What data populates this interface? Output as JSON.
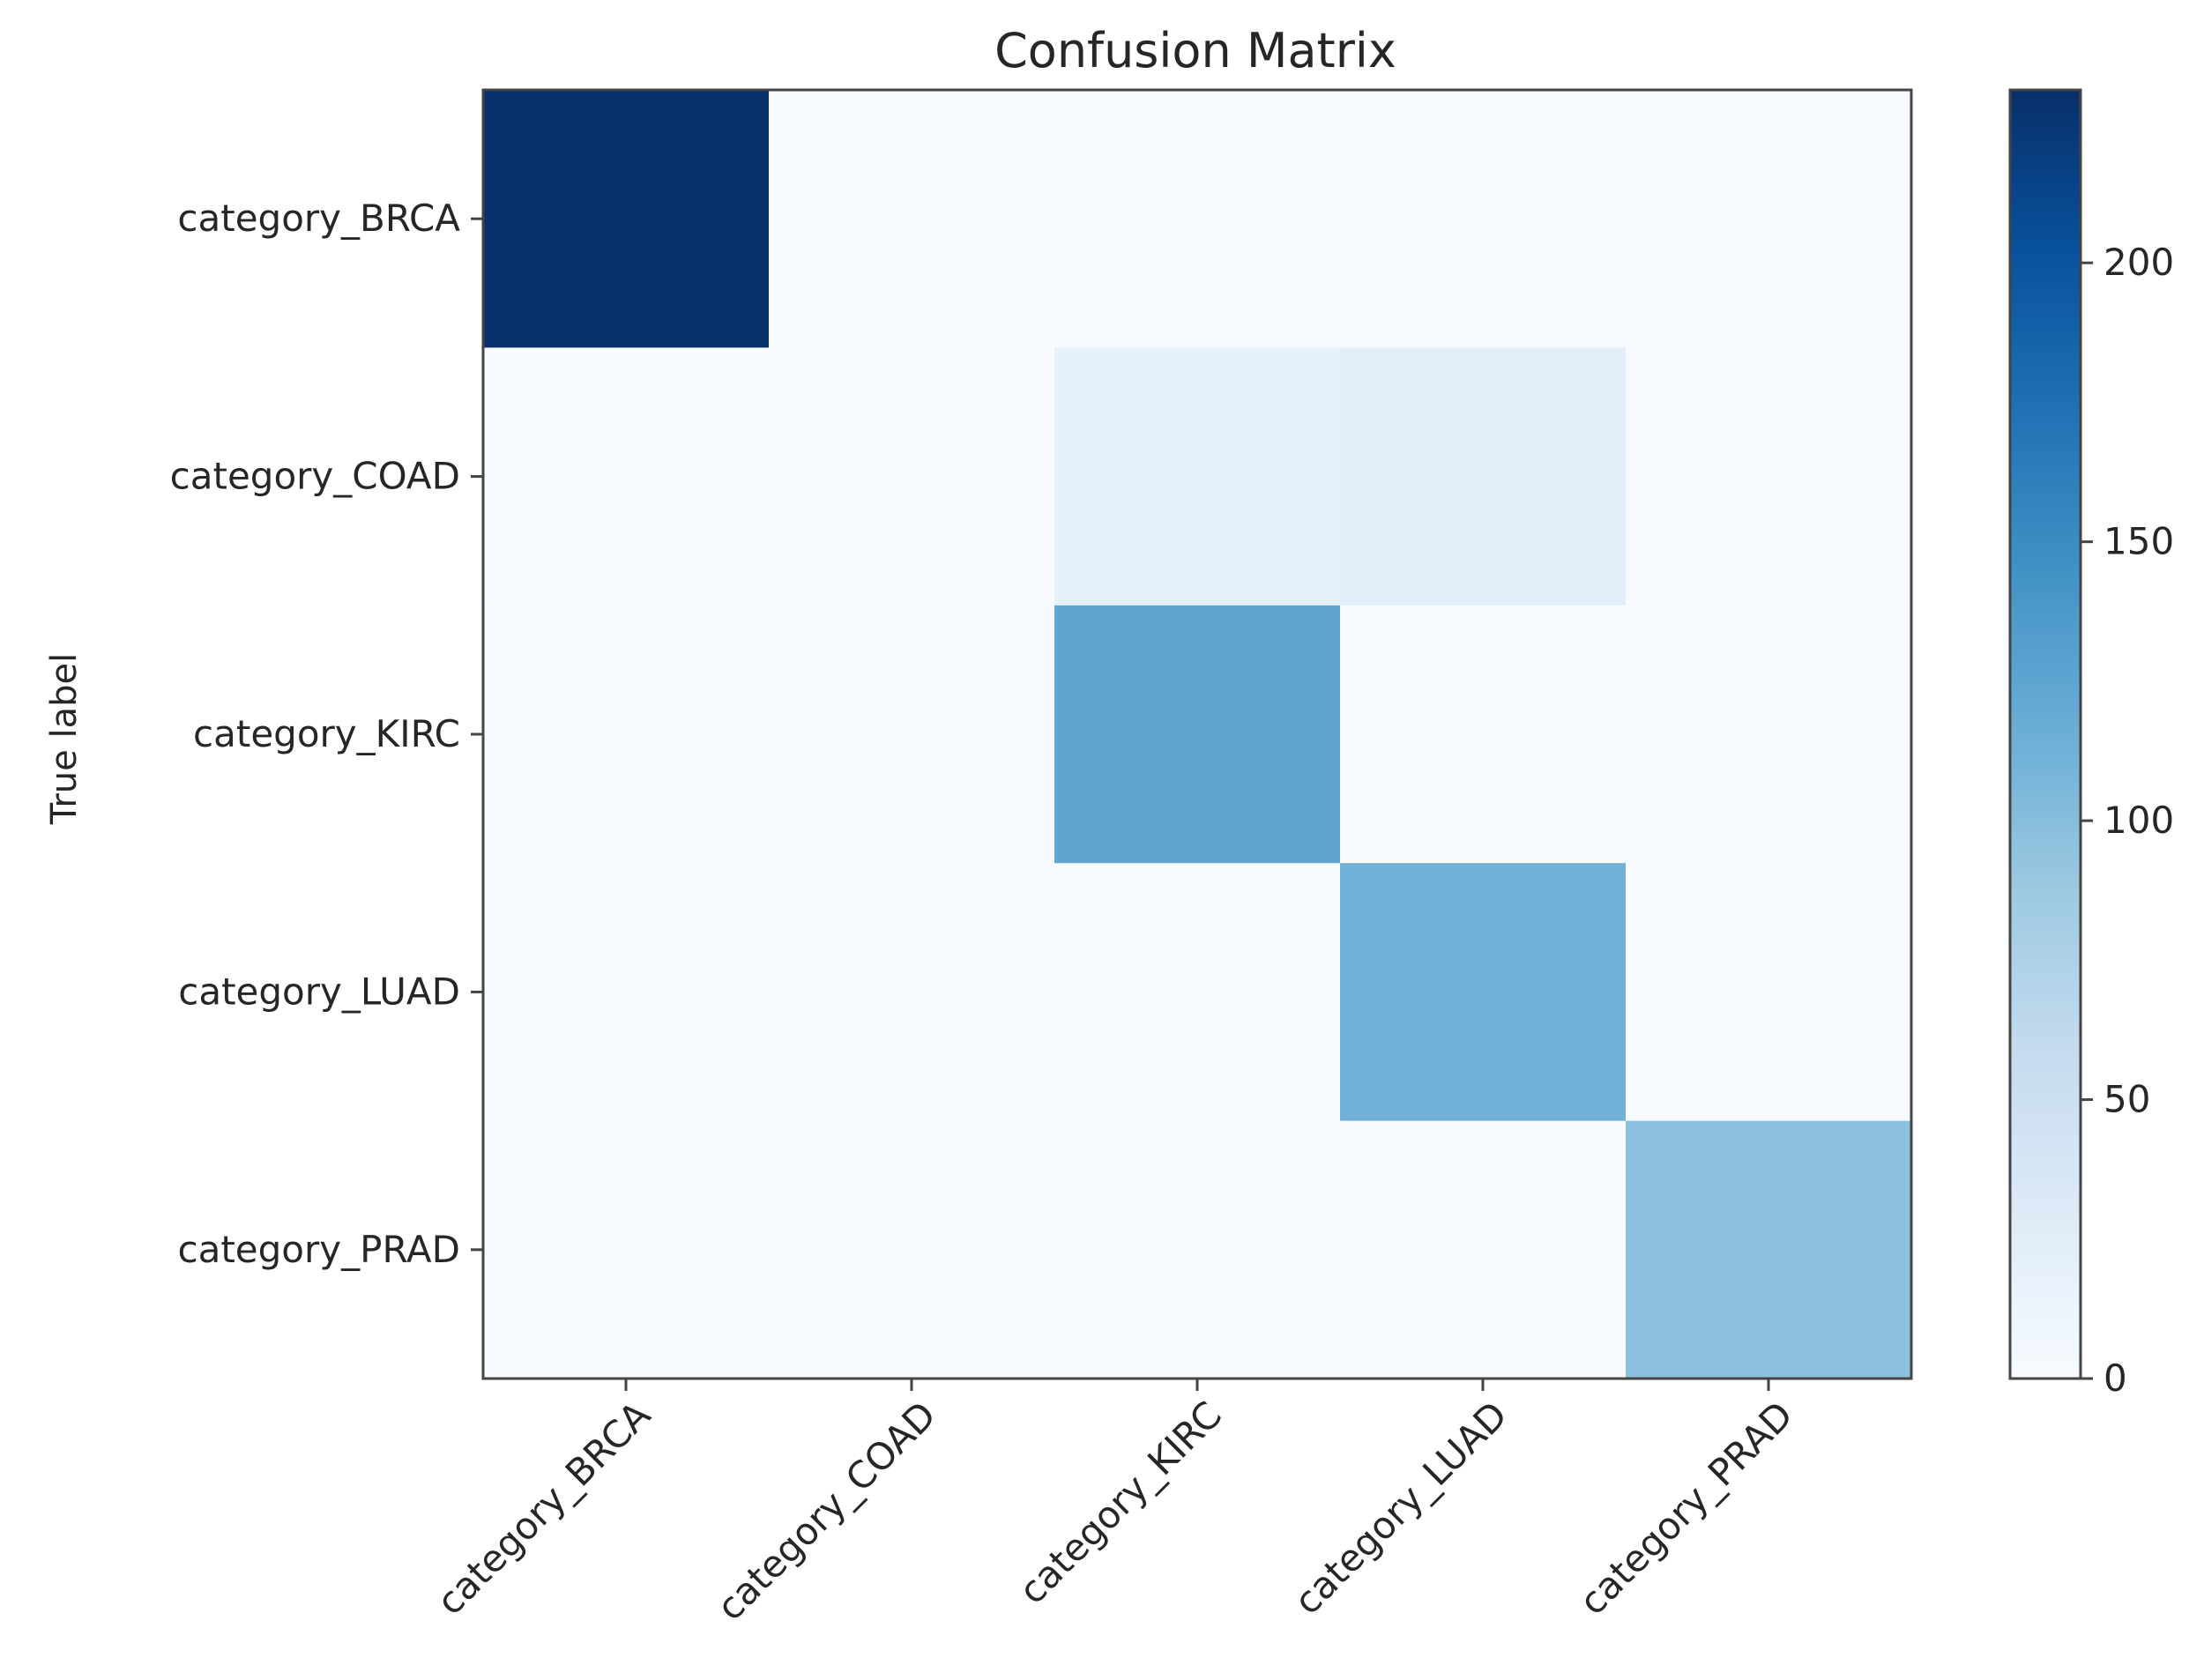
{
  "chart_data": {
    "type": "heatmap",
    "title": "Confusion Matrix",
    "ylabel": "True label",
    "xlabel": "",
    "rows": [
      "category_BRCA",
      "category_COAD",
      "category_KIRC",
      "category_LUAD",
      "category_PRAD"
    ],
    "columns": [
      "category_BRCA",
      "category_COAD",
      "category_KIRC",
      "category_LUAD",
      "category_PRAD"
    ],
    "values": [
      [
        231,
        0,
        0,
        0,
        0
      ],
      [
        0,
        0,
        18,
        24,
        0
      ],
      [
        0,
        0,
        125,
        0,
        0
      ],
      [
        0,
        0,
        0,
        112,
        0
      ],
      [
        0,
        0,
        0,
        0,
        97
      ]
    ],
    "colormap": "Blues",
    "colorbar": {
      "range": [
        0,
        231
      ],
      "ticks": [
        0,
        50,
        100,
        150,
        200
      ]
    },
    "grid": false,
    "legend": "colorbar-right",
    "colors": {
      "low": "#f7fbff",
      "high": "#08306b",
      "axis": "#444444"
    }
  }
}
